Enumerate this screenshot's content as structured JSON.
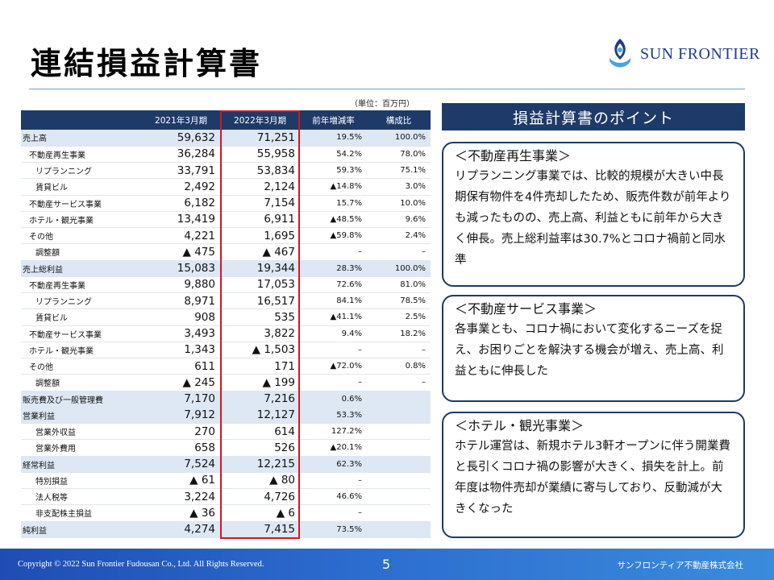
{
  "title": "連結損益計算書",
  "logo_text": "SUN FRONTIER",
  "unit_label": "（単位：百万円）",
  "table": {
    "headers": [
      "",
      "2021年3月期",
      "2022年3月期",
      "前年増減率",
      "構成比"
    ],
    "rows": [
      {
        "label": "売上高",
        "fy2021": "59,632",
        "fy2022": "71,251",
        "change": "19.5%",
        "ratio": "100.0%",
        "main": true,
        "indent": 0
      },
      {
        "label": "不動産再生事業",
        "fy2021": "36,284",
        "fy2022": "55,958",
        "change": "54.2%",
        "ratio": "78.0%",
        "main": false,
        "indent": 1
      },
      {
        "label": "リプランニング",
        "fy2021": "33,791",
        "fy2022": "53,834",
        "change": "59.3%",
        "ratio": "75.1%",
        "main": false,
        "indent": 2
      },
      {
        "label": "賃貸ビル",
        "fy2021": "2,492",
        "fy2022": "2,124",
        "change": "▲14.8%",
        "ratio": "3.0%",
        "main": false,
        "indent": 2
      },
      {
        "label": "不動産サービス事業",
        "fy2021": "6,182",
        "fy2022": "7,154",
        "change": "15.7%",
        "ratio": "10.0%",
        "main": false,
        "indent": 1
      },
      {
        "label": "ホテル・観光事業",
        "fy2021": "13,419",
        "fy2022": "6,911",
        "change": "▲48.5%",
        "ratio": "9.6%",
        "main": false,
        "indent": 1
      },
      {
        "label": "その他",
        "fy2021": "4,221",
        "fy2022": "1,695",
        "change": "▲59.8%",
        "ratio": "2.4%",
        "main": false,
        "indent": 1
      },
      {
        "label": "調整額",
        "fy2021": "▲ 475",
        "fy2022": "▲ 467",
        "change": "–",
        "ratio": "–",
        "main": false,
        "indent": 2
      },
      {
        "label": "売上総利益",
        "fy2021": "15,083",
        "fy2022": "19,344",
        "change": "28.3%",
        "ratio": "100.0%",
        "main": true,
        "indent": 0
      },
      {
        "label": "不動産再生事業",
        "fy2021": "9,880",
        "fy2022": "17,053",
        "change": "72.6%",
        "ratio": "81.0%",
        "main": false,
        "indent": 1
      },
      {
        "label": "リプランニング",
        "fy2021": "8,971",
        "fy2022": "16,517",
        "change": "84.1%",
        "ratio": "78.5%",
        "main": false,
        "indent": 2
      },
      {
        "label": "賃貸ビル",
        "fy2021": "908",
        "fy2022": "535",
        "change": "▲41.1%",
        "ratio": "2.5%",
        "main": false,
        "indent": 2
      },
      {
        "label": "不動産サービス事業",
        "fy2021": "3,493",
        "fy2022": "3,822",
        "change": "9.4%",
        "ratio": "18.2%",
        "main": false,
        "indent": 1
      },
      {
        "label": "ホテル・観光事業",
        "fy2021": "1,343",
        "fy2022": "▲ 1,503",
        "change": "–",
        "ratio": "–",
        "main": false,
        "indent": 1
      },
      {
        "label": "その他",
        "fy2021": "611",
        "fy2022": "171",
        "change": "▲72.0%",
        "ratio": "0.8%",
        "main": false,
        "indent": 1
      },
      {
        "label": "調整額",
        "fy2021": "▲ 245",
        "fy2022": "▲ 199",
        "change": "–",
        "ratio": "–",
        "main": false,
        "indent": 2
      },
      {
        "label": "販売費及び一般管理費",
        "fy2021": "7,170",
        "fy2022": "7,216",
        "change": "0.6%",
        "ratio": "",
        "main": true,
        "indent": 0
      },
      {
        "label": "営業利益",
        "fy2021": "7,912",
        "fy2022": "12,127",
        "change": "53.3%",
        "ratio": "",
        "main": true,
        "indent": 0
      },
      {
        "label": "営業外収益",
        "fy2021": "270",
        "fy2022": "614",
        "change": "127.2%",
        "ratio": "",
        "main": false,
        "indent": 2
      },
      {
        "label": "営業外費用",
        "fy2021": "658",
        "fy2022": "526",
        "change": "▲20.1%",
        "ratio": "",
        "main": false,
        "indent": 2
      },
      {
        "label": "経常利益",
        "fy2021": "7,524",
        "fy2022": "12,215",
        "change": "62.3%",
        "ratio": "",
        "main": true,
        "indent": 0
      },
      {
        "label": "特別損益",
        "fy2021": "▲ 61",
        "fy2022": "▲ 80",
        "change": "–",
        "ratio": "",
        "main": false,
        "indent": 2
      },
      {
        "label": "法人税等",
        "fy2021": "3,224",
        "fy2022": "4,726",
        "change": "46.6%",
        "ratio": "",
        "main": false,
        "indent": 2
      },
      {
        "label": "非支配株主損益",
        "fy2021": "▲ 36",
        "fy2022": "▲ 6",
        "change": "–",
        "ratio": "",
        "main": false,
        "indent": 2
      },
      {
        "label": "純利益",
        "fy2021": "4,274",
        "fy2022": "7,415",
        "change": "73.5%",
        "ratio": "",
        "main": true,
        "indent": 0
      }
    ]
  },
  "points_header": "損益計算書のポイント",
  "points": [
    {
      "title": "＜不動産再生事業＞",
      "body": "リプランニング事業では、比較的規模が大きい中長期保有物件を4件売却したため、販売件数が前年よりも減ったものの、売上高、利益ともに前年から大きく伸長。売上総利益率は30.7%とコロナ禍前と同水準"
    },
    {
      "title": "＜不動産サービス事業＞",
      "body": "各事業とも、コロナ禍において変化するニーズを捉え、お困りごとを解決する機会が増え、売上高、利益ともに伸長した"
    },
    {
      "title": "＜ホテル・観光事業＞",
      "body": "ホテル運営は、新規ホテル3軒オープンに伴う開業費と長引くコロナ禍の影響が大きく、損失を計上。前年度は物件売却が業績に寄与しており、反動減が大きくなった"
    }
  ],
  "footer": {
    "copyright": "Copyright © 2022 Sun Frontier Fudousan Co., Ltd. All Rights Reserved.",
    "page_number": "5",
    "company": "サンフロンティア不動産株式会社"
  },
  "colors": {
    "navy": "#1e3a68",
    "highlight_red": "#d9151b",
    "row_shade": "#dde8f4",
    "footer_blue": "#2d6fd0"
  }
}
